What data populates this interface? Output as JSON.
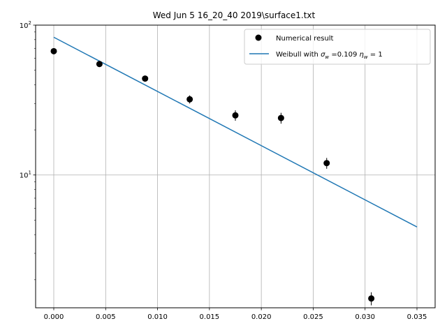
{
  "chart_data": {
    "type": "scatter",
    "title": "Wed Jun  5 16_20_40 2019\\surface1.txt",
    "xlabel": "",
    "ylabel": "",
    "xlim": [
      -0.00175,
      0.03675
    ],
    "ylim": [
      1.3,
      100
    ],
    "yscale": "log",
    "grid": true,
    "legend_position": "top-right",
    "x_ticks": [
      {
        "value": 0.0,
        "label": "0.000"
      },
      {
        "value": 0.005,
        "label": "0.005"
      },
      {
        "value": 0.01,
        "label": "0.010"
      },
      {
        "value": 0.015,
        "label": "0.015"
      },
      {
        "value": 0.02,
        "label": "0.020"
      },
      {
        "value": 0.025,
        "label": "0.025"
      },
      {
        "value": 0.03,
        "label": "0.030"
      },
      {
        "value": 0.035,
        "label": "0.035"
      }
    ],
    "y_ticks": [
      {
        "value": 10,
        "base": "10",
        "exp": "1"
      },
      {
        "value": 100,
        "base": "10",
        "exp": "2"
      }
    ],
    "series": [
      {
        "name": "Numerical result",
        "kind": "points",
        "color": "#000000",
        "points": [
          {
            "x": 0.0,
            "y": 67.0,
            "err": 2.0
          },
          {
            "x": 0.0044,
            "y": 55.0,
            "err": 2.0
          },
          {
            "x": 0.0088,
            "y": 44.0,
            "err": 2.0
          },
          {
            "x": 0.0131,
            "y": 32.0,
            "err": 2.0
          },
          {
            "x": 0.0175,
            "y": 25.0,
            "err": 2.0
          },
          {
            "x": 0.0219,
            "y": 24.0,
            "err": 2.0
          },
          {
            "x": 0.0263,
            "y": 12.0,
            "err": 1.0
          },
          {
            "x": 0.0306,
            "y": 1.5,
            "err": 0.15
          }
        ]
      },
      {
        "name_prefix": "Weibull with ",
        "name_sigma": "σ",
        "name_sigma_sub": "w",
        "name_mid": " =0.109 ",
        "name_eta": "η",
        "name_eta_sub": "w",
        "name_suffix": " = 1",
        "kind": "line",
        "color": "#1f77b4",
        "x": [
          0.0,
          0.035
        ],
        "y": [
          83.0,
          4.5
        ]
      }
    ]
  }
}
